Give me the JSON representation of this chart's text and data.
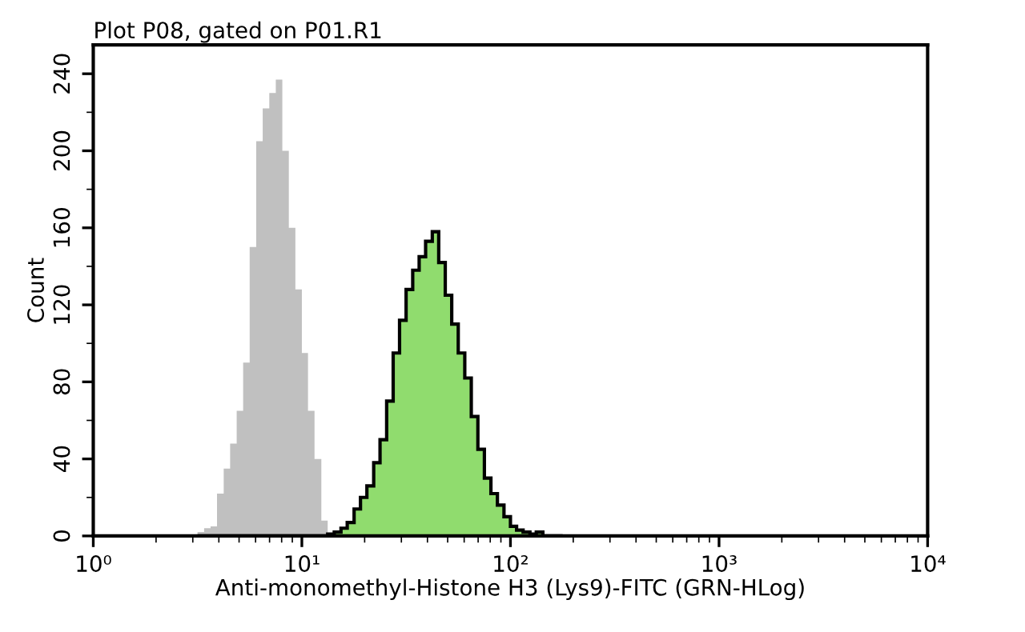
{
  "chart_data": {
    "type": "histogram",
    "title": "Plot P08, gated on P01.R1",
    "xlabel": "Anti-monomethyl-Histone H3 (Lys9)-FITC (GRN-HLog)",
    "ylabel": "Count",
    "log": "x",
    "xlim": [
      1,
      10000
    ],
    "xticks": [
      {
        "value": 1,
        "label": "10⁰"
      },
      {
        "value": 10,
        "label": "10¹"
      },
      {
        "value": 100,
        "label": "10²"
      },
      {
        "value": 1000,
        "label": "10³"
      },
      {
        "value": 10000,
        "label": "10⁴"
      }
    ],
    "ylim": [
      0,
      255
    ],
    "yticks": [
      0,
      40,
      80,
      120,
      160,
      200,
      240
    ],
    "grid": false,
    "bins": [
      3.16,
      3.4,
      3.65,
      3.92,
      4.22,
      4.53,
      4.87,
      5.23,
      5.62,
      6.04,
      6.49,
      6.98,
      7.5,
      8.06,
      8.66,
      9.31,
      10.0,
      10.7,
      11.5,
      12.4,
      13.3,
      14.3,
      15.4,
      16.5,
      17.8,
      19.1,
      20.5,
      22.1,
      23.7,
      25.5,
      27.4,
      29.4,
      31.6,
      34.0,
      36.5,
      39.2,
      42.2,
      45.3,
      48.7,
      52.3,
      56.2,
      60.4,
      64.9,
      69.8,
      75.0,
      80.6,
      86.6,
      93.1,
      100,
      107,
      115,
      124,
      133,
      143,
      154,
      165,
      178
    ],
    "series": [
      {
        "color": "#c0c0c0",
        "values": [
          2,
          4,
          5,
          22,
          35,
          48,
          65,
          90,
          150,
          205,
          222,
          230,
          237,
          200,
          160,
          128,
          95,
          65,
          40,
          8,
          0,
          0,
          0,
          0,
          0,
          0,
          0,
          0,
          0,
          0,
          0,
          0,
          0,
          0,
          0,
          0,
          0,
          0,
          0,
          0,
          0,
          0,
          0,
          0,
          0,
          0,
          0,
          0,
          0,
          0,
          0,
          0,
          0,
          0,
          0,
          0
        ]
      },
      {
        "color": "#90dc6e",
        "line_style": "solid",
        "values": [
          0,
          0,
          0,
          0,
          0,
          0,
          0,
          0,
          0,
          0,
          0,
          0,
          0,
          0,
          0,
          0,
          0,
          0,
          0,
          0,
          1,
          2,
          4,
          7,
          14,
          20,
          26,
          38,
          50,
          70,
          95,
          112,
          128,
          138,
          145,
          153,
          158,
          142,
          125,
          110,
          95,
          82,
          62,
          45,
          30,
          22,
          16,
          10,
          5,
          3,
          2,
          1,
          2,
          0,
          0,
          0
        ]
      }
    ]
  }
}
